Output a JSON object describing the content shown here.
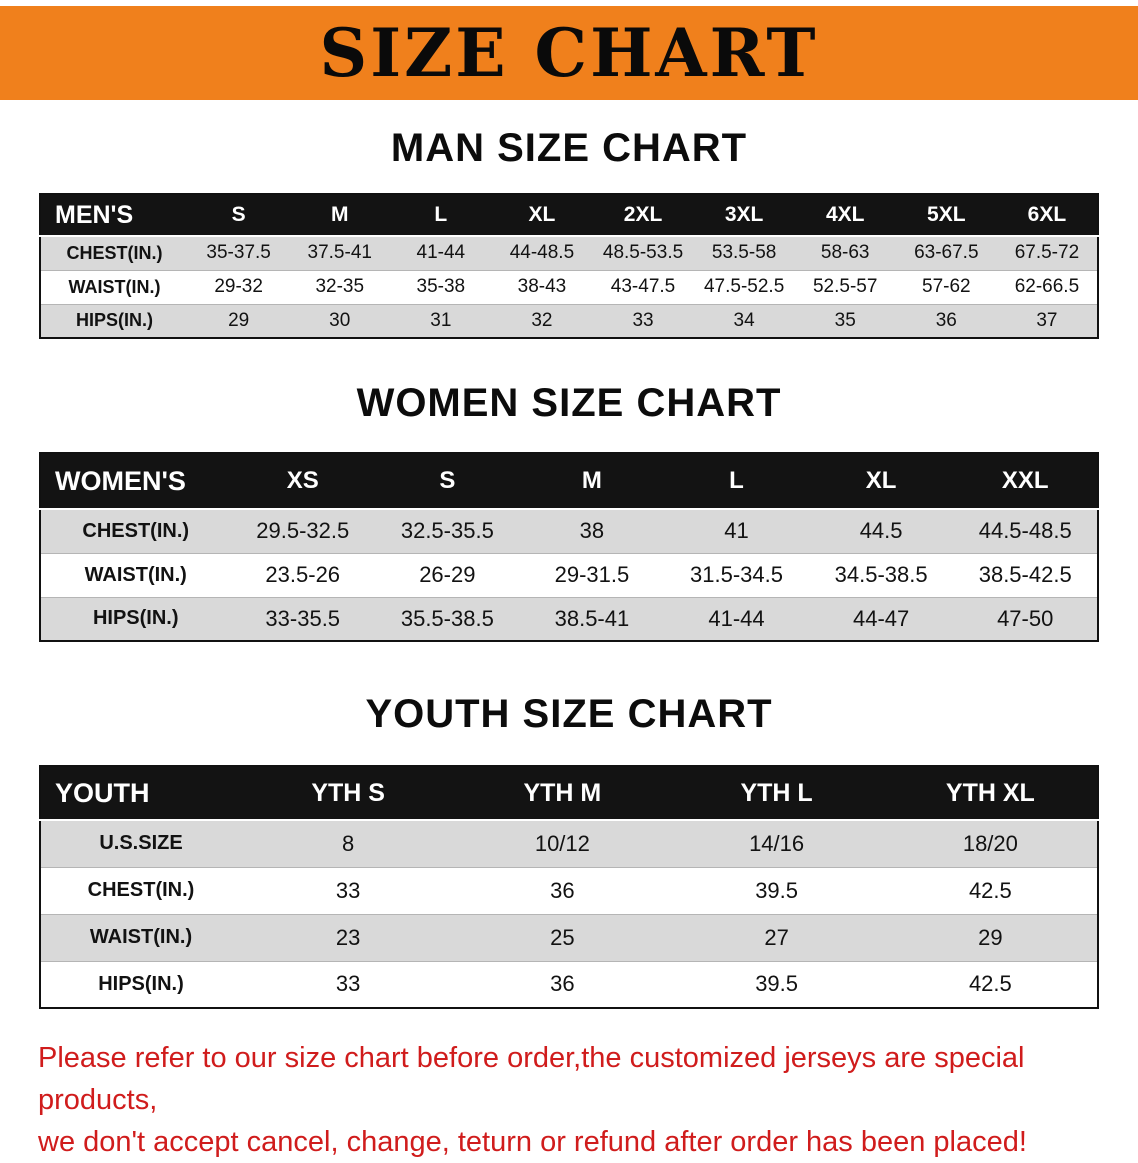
{
  "banner": {
    "title": "SIZE CHART",
    "background": "#f0801c"
  },
  "sections": {
    "men": {
      "heading": "MAN SIZE CHART",
      "header": [
        "MEN'S",
        "S",
        "M",
        "L",
        "XL",
        "2XL",
        "3XL",
        "4XL",
        "5XL",
        "6XL"
      ],
      "rows": [
        [
          "CHEST(IN.)",
          "35-37.5",
          "37.5-41",
          "41-44",
          "44-48.5",
          "48.5-53.5",
          "53.5-58",
          "58-63",
          "63-67.5",
          "67.5-72"
        ],
        [
          "WAIST(IN.)",
          "29-32",
          "32-35",
          "35-38",
          "38-43",
          "43-47.5",
          "47.5-52.5",
          "52.5-57",
          "57-62",
          "62-66.5"
        ],
        [
          "HIPS(IN.)",
          "29",
          "30",
          "31",
          "32",
          "33",
          "34",
          "35",
          "36",
          "37"
        ]
      ]
    },
    "women": {
      "heading": "WOMEN SIZE CHART",
      "header": [
        "WOMEN'S",
        "XS",
        "S",
        "M",
        "L",
        "XL",
        "XXL"
      ],
      "rows": [
        [
          "CHEST(IN.)",
          "29.5-32.5",
          "32.5-35.5",
          "38",
          "41",
          "44.5",
          "44.5-48.5"
        ],
        [
          "WAIST(IN.)",
          "23.5-26",
          "26-29",
          "29-31.5",
          "31.5-34.5",
          "34.5-38.5",
          "38.5-42.5"
        ],
        [
          "HIPS(IN.)",
          "33-35.5",
          "35.5-38.5",
          "38.5-41",
          "41-44",
          "44-47",
          "47-50"
        ]
      ]
    },
    "youth": {
      "heading": "YOUTH SIZE CHART",
      "header": [
        "YOUTH",
        "YTH S",
        "YTH M",
        "YTH L",
        "YTH XL"
      ],
      "rows": [
        [
          "U.S.SIZE",
          "8",
          "10/12",
          "14/16",
          "18/20"
        ],
        [
          "CHEST(IN.)",
          "33",
          "36",
          "39.5",
          "42.5"
        ],
        [
          "WAIST(IN.)",
          "23",
          "25",
          "27",
          "29"
        ],
        [
          "HIPS(IN.)",
          "33",
          "36",
          "39.5",
          "42.5"
        ]
      ]
    }
  },
  "footer": {
    "lines": [
      "Please refer to our size chart before order,the customized jerseys are special products,",
      "we don't accept cancel, change, teturn or refund after order has been placed!"
    ],
    "color": "#d01c1c"
  }
}
